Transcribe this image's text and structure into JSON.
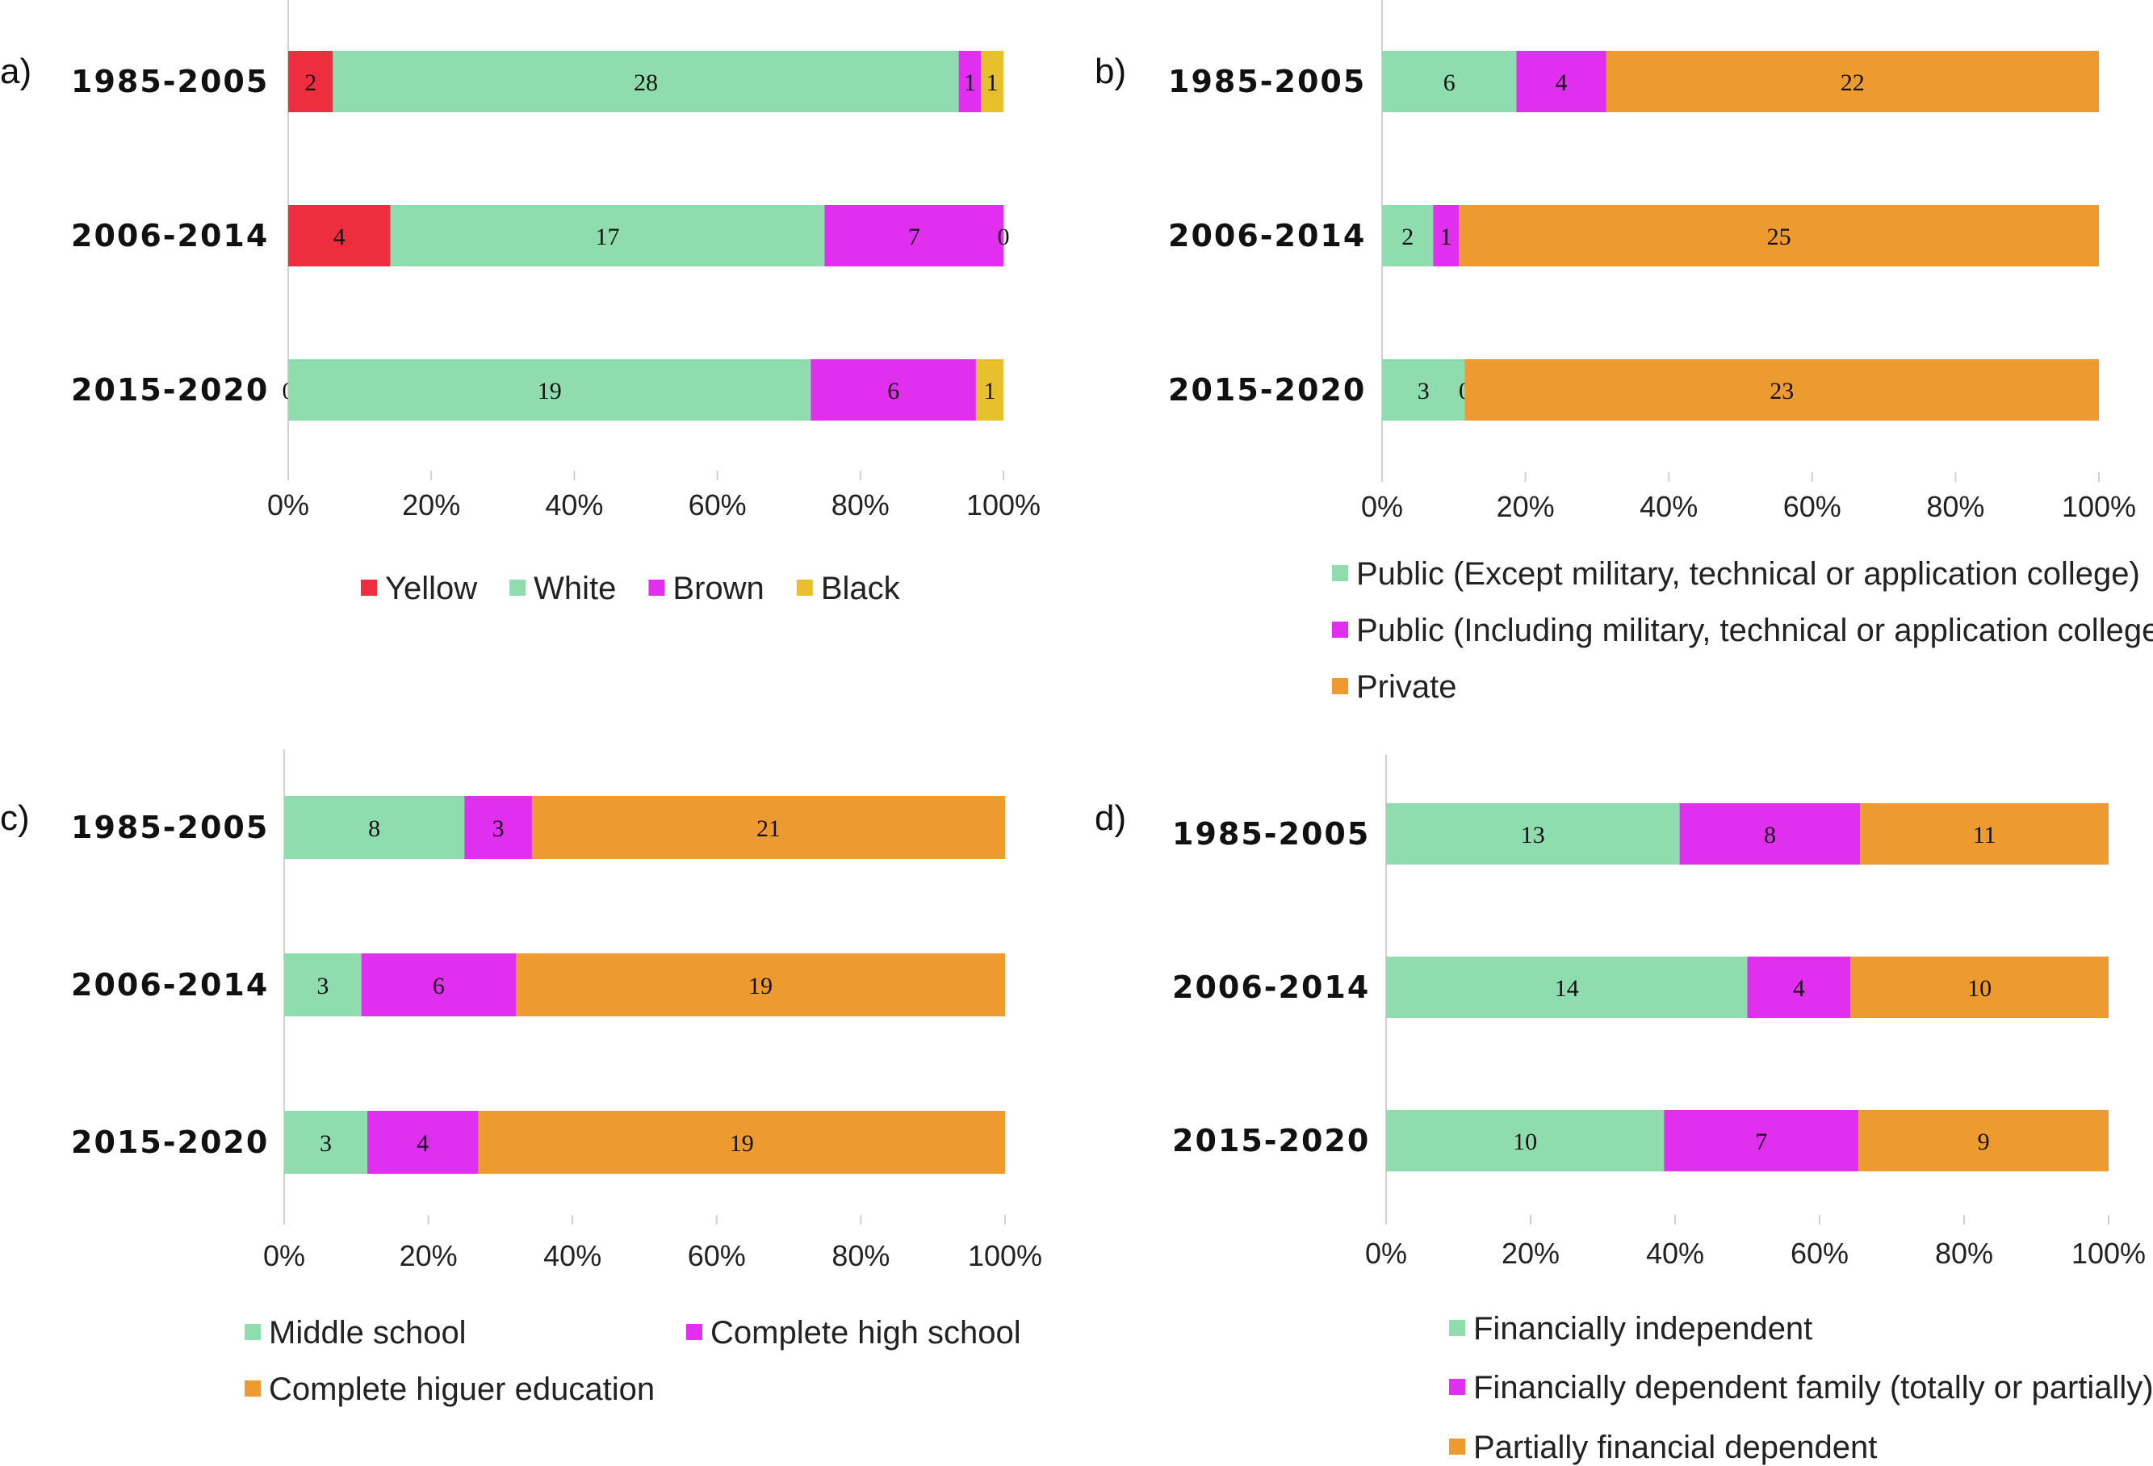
{
  "colors": {
    "red": "#ee2e3e",
    "green": "#8fdcae",
    "magenta": "#e12ff0",
    "gold": "#e8c02e",
    "orange": "#ed9a2f"
  },
  "chart_data": [
    {
      "id": "a",
      "panel_label": "a)",
      "type": "bar",
      "orientation": "horizontal",
      "stacked": "percent",
      "categories": [
        "1985-2005",
        "2006-2014",
        "2015-2020"
      ],
      "series": [
        {
          "name": "Yellow",
          "color": "#ee2e3e",
          "values": [
            2,
            4,
            0
          ]
        },
        {
          "name": "White",
          "color": "#8fdcae",
          "values": [
            28,
            17,
            19
          ]
        },
        {
          "name": "Brown",
          "color": "#e12ff0",
          "values": [
            1,
            7,
            6
          ]
        },
        {
          "name": "Black",
          "color": "#e8c02e",
          "values": [
            1,
            0,
            1
          ]
        }
      ],
      "xticks": [
        "0%",
        "20%",
        "40%",
        "60%",
        "80%",
        "100%"
      ],
      "xlim": [
        0,
        100
      ],
      "legend": "bottom"
    },
    {
      "id": "b",
      "panel_label": "b)",
      "type": "bar",
      "orientation": "horizontal",
      "stacked": "percent",
      "categories": [
        "1985-2005",
        "2006-2014",
        "2015-2020"
      ],
      "series": [
        {
          "name": "Public (Except military, technical or application college)",
          "color": "#8fdcae",
          "values": [
            6,
            2,
            3
          ]
        },
        {
          "name": "Public (Including military, technical or application college)",
          "color": "#e12ff0",
          "values": [
            4,
            1,
            0
          ]
        },
        {
          "name": "Private",
          "color": "#ed9a2f",
          "values": [
            22,
            25,
            23
          ]
        }
      ],
      "xticks": [
        "0%",
        "20%",
        "40%",
        "60%",
        "80%",
        "100%"
      ],
      "xlim": [
        0,
        100
      ],
      "legend": "bottom"
    },
    {
      "id": "c",
      "panel_label": "c)",
      "type": "bar",
      "orientation": "horizontal",
      "stacked": "percent",
      "categories": [
        "1985-2005",
        "2006-2014",
        "2015-2020"
      ],
      "series": [
        {
          "name": "Middle school",
          "color": "#8fdcae",
          "values": [
            8,
            3,
            3
          ]
        },
        {
          "name": "Complete high school",
          "color": "#e12ff0",
          "values": [
            3,
            6,
            4
          ]
        },
        {
          "name": "Complete higuer education",
          "color": "#ed9a2f",
          "values": [
            21,
            19,
            19
          ]
        }
      ],
      "xticks": [
        "0%",
        "20%",
        "40%",
        "60%",
        "80%",
        "100%"
      ],
      "xlim": [
        0,
        100
      ],
      "legend": "bottom"
    },
    {
      "id": "d",
      "panel_label": "d)",
      "type": "bar",
      "orientation": "horizontal",
      "stacked": "percent",
      "categories": [
        "1985-2005",
        "2006-2014",
        "2015-2020"
      ],
      "series": [
        {
          "name": "Financially independent",
          "color": "#8fdcae",
          "values": [
            13,
            14,
            10
          ]
        },
        {
          "name": "Financially dependent family (totally or partially)",
          "color": "#e12ff0",
          "values": [
            8,
            4,
            7
          ]
        },
        {
          "name": "Partially financial dependent",
          "color": "#ed9a2f",
          "values": [
            11,
            10,
            9
          ]
        }
      ],
      "xticks": [
        "0%",
        "20%",
        "40%",
        "60%",
        "80%",
        "100%"
      ],
      "xlim": [
        0,
        100
      ],
      "legend": "bottom"
    }
  ]
}
